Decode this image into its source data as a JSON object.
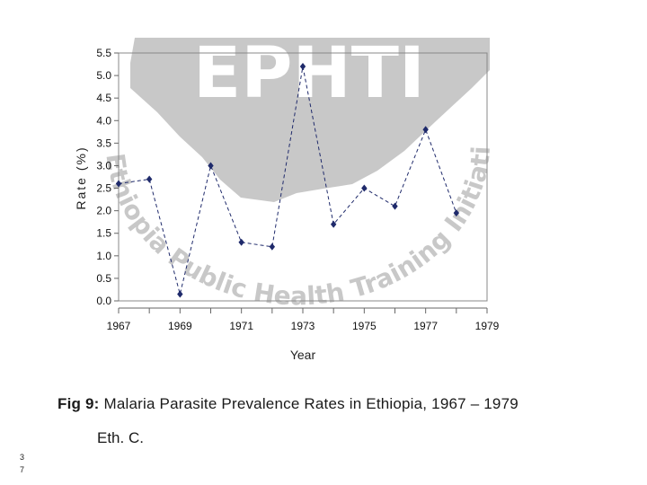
{
  "chart_data": {
    "type": "line",
    "xlabel": "Year",
    "ylabel": "Rate (%)",
    "xlim": [
      1967,
      1979
    ],
    "ylim": [
      0,
      5.5
    ],
    "x_ticks": [
      "1967",
      "1969",
      "1971",
      "1973",
      "1975",
      "1977",
      "1979"
    ],
    "y_ticks": [
      "0.0",
      "0.5",
      "1.0",
      "1.5",
      "2.0",
      "2.5",
      "3.0",
      "3.5",
      "4.0",
      "4.5",
      "5.0",
      "5.5"
    ],
    "series": [
      {
        "x": [
          1967,
          1968,
          1969,
          1970,
          1971,
          1972,
          1973,
          1974,
          1975,
          1976,
          1977,
          1978
        ],
        "values": [
          2.6,
          2.7,
          0.15,
          3.0,
          1.3,
          1.2,
          5.2,
          1.7,
          2.5,
          2.1,
          3.8,
          1.95
        ],
        "color": "#1f2a6b",
        "line_style": "dashed",
        "marker": "diamond"
      }
    ],
    "grid": false,
    "legend": "none"
  },
  "watermark": {
    "logo_text": "EPHTI",
    "ring_text": "Ethiopia Public Health Training Initiative •",
    "color": "#c8c8c8"
  },
  "caption": {
    "label": "Fig 9:",
    "text": "Malaria Parasite Prevalence Rates in Ethiopia, 1967 – 1979",
    "subtext": "Eth. C."
  },
  "page_number": "3\n7"
}
